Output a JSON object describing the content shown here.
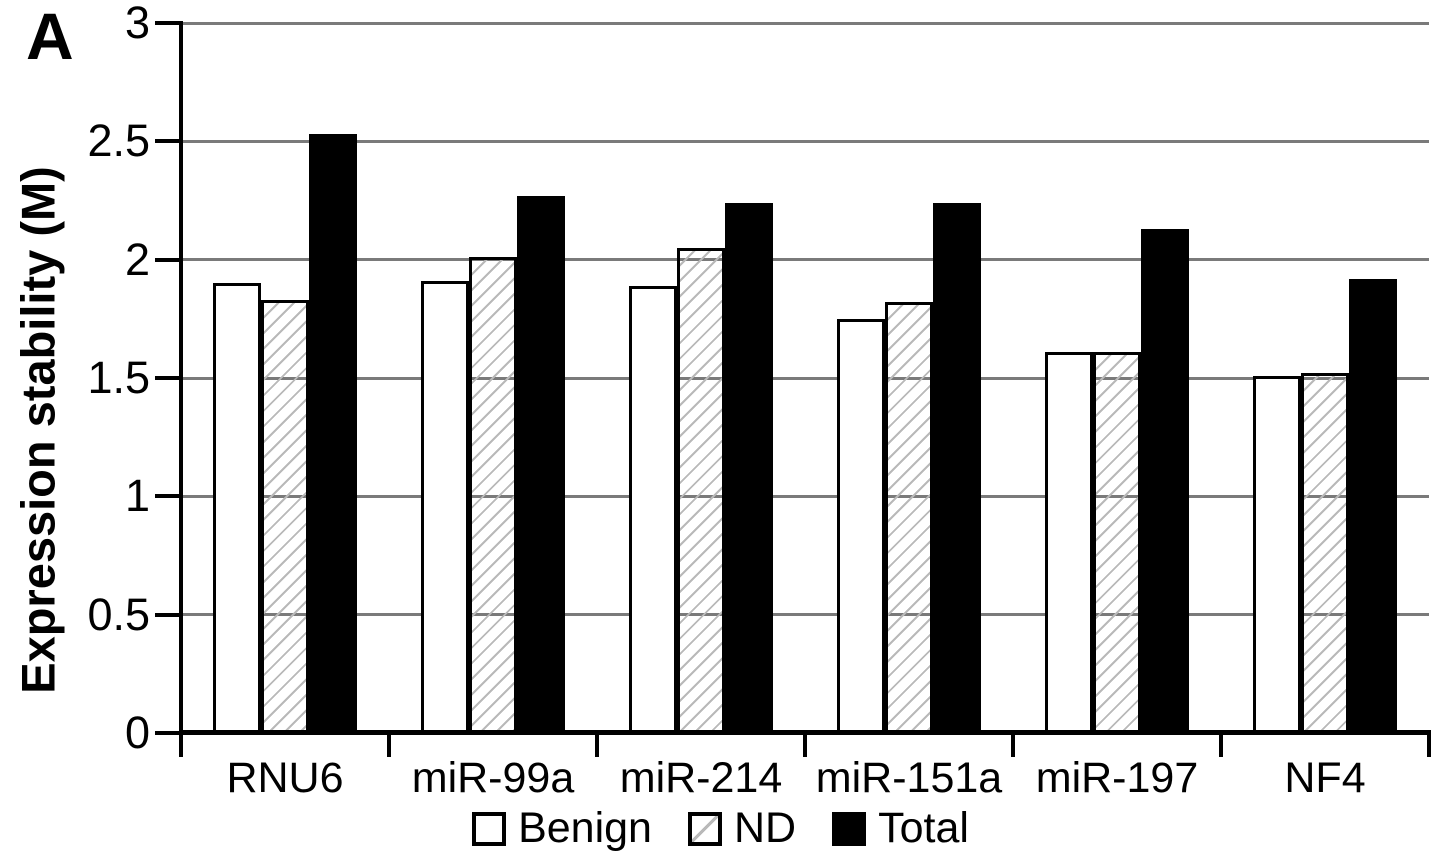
{
  "panel_label": "A",
  "chart_data": {
    "type": "bar",
    "title": "",
    "xlabel": "",
    "ylabel": "Expression stability (M)",
    "ylim": [
      0,
      3
    ],
    "ytick_labels": [
      "0",
      "0.5",
      "1",
      "1.5",
      "2",
      "2.5",
      "3"
    ],
    "ytick_values": [
      0,
      0.5,
      1,
      1.5,
      2,
      2.5,
      3
    ],
    "grid": true,
    "legend_position": "bottom",
    "categories": [
      "RNU6",
      "miR-99a",
      "miR-214",
      "miR-151a",
      "miR-197",
      "NF4"
    ],
    "series": [
      {
        "name": "Benign",
        "swatch": "open",
        "values": [
          1.9,
          1.91,
          1.89,
          1.75,
          1.61,
          1.51
        ]
      },
      {
        "name": "ND",
        "swatch": "hatched",
        "values": [
          1.83,
          2.01,
          2.05,
          1.82,
          1.61,
          1.52
        ]
      },
      {
        "name": "Total",
        "swatch": "filled",
        "values": [
          2.53,
          2.27,
          2.24,
          2.24,
          2.13,
          1.92
        ]
      }
    ],
    "colors": {
      "bar_filled": "#000000",
      "bar_open": "#ffffff",
      "hatch_line": "#b9b9b9",
      "gridline": "#7a7a7a",
      "axis": "#000000",
      "text": "#000000",
      "background": "#ffffff"
    }
  }
}
